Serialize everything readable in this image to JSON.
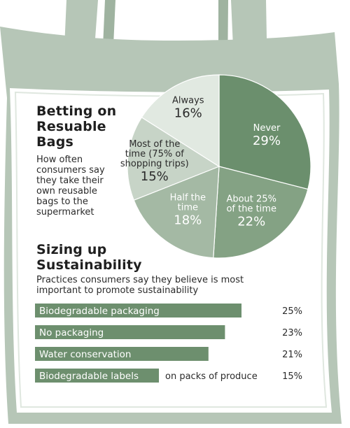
{
  "colors": {
    "bag": "#b6c6b7",
    "bag_inner": "#ffffff",
    "pie": [
      "#6b8f6d",
      "#84a284",
      "#a4b9a4",
      "#c7d4c7",
      "#e1e9e1"
    ],
    "bar": "#6d8f6e",
    "bar_text": "#ffffff",
    "pie_label_dark": "#ffffff",
    "pie_label_light": "#2b2b2b"
  },
  "pie_section": {
    "title_lines": [
      "Betting on",
      "Resuable",
      "Bags"
    ],
    "subtitle_lines": [
      "How often",
      "consumers say",
      "they take their",
      "own reusable",
      "bags to the",
      "supermarket"
    ]
  },
  "bar_section": {
    "title_lines": [
      "Sizing up",
      "Sustainability"
    ],
    "subtitle_lines": [
      "Practices consumers say they believe is most",
      "important to promote sustainability"
    ]
  },
  "chart_data": [
    {
      "type": "pie",
      "title": "Betting on Resuable Bags",
      "subtitle": "How often consumers say they take their own reusable bags to the supermarket",
      "slices": [
        {
          "label_lines": [
            "Never"
          ],
          "value": 29,
          "value_label": "29%"
        },
        {
          "label_lines": [
            "About 25%",
            "of the time"
          ],
          "value": 22,
          "value_label": "22%"
        },
        {
          "label_lines": [
            "Half the",
            "time"
          ],
          "value": 18,
          "value_label": "18%"
        },
        {
          "label_lines": [
            "Most of the",
            "time (75% of",
            "shopping trips)"
          ],
          "value": 15,
          "value_label": "15%"
        },
        {
          "label_lines": [
            "Always"
          ],
          "value": 16,
          "value_label": "16%"
        }
      ]
    },
    {
      "type": "bar",
      "orientation": "horizontal",
      "title": "Sizing up Sustainability",
      "subtitle": "Practices consumers say they believe is most important to promote sustainability",
      "categories": [
        "Biodegradable packaging",
        "No packaging",
        "Water conservation",
        "Biodegradable labels"
      ],
      "category_suffix": [
        "",
        "",
        "",
        "on packs of produce"
      ],
      "values": [
        25,
        23,
        21,
        15
      ],
      "value_labels": [
        "25%",
        "23%",
        "21%",
        "15%"
      ],
      "xlim": [
        0,
        25
      ]
    }
  ]
}
